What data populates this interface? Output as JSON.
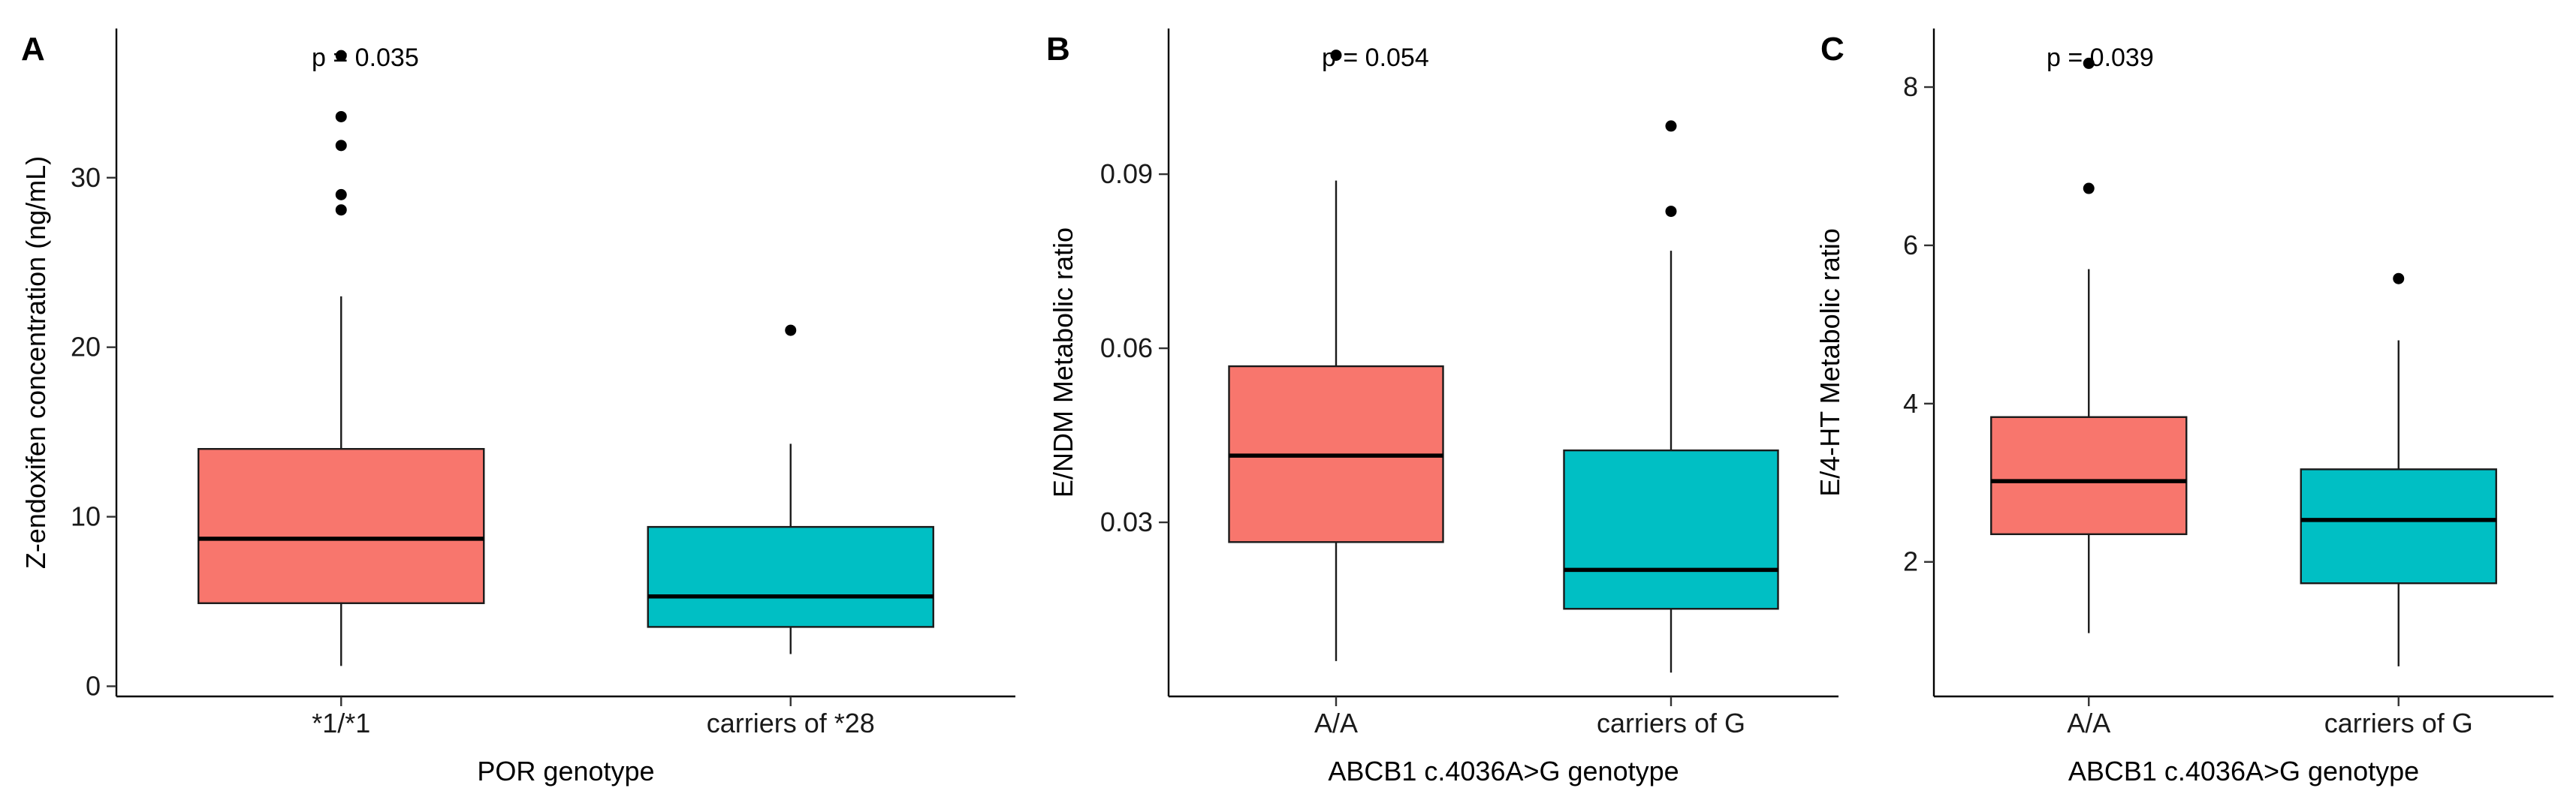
{
  "chart_data": [
    {
      "type": "boxplot",
      "panel_label": "A",
      "annotation": "p = 0.035",
      "xlabel": "POR genotype",
      "ylabel": "Z-endoxifen concentration (ng/mL)",
      "ylim": [
        -0.6,
        38.8
      ],
      "yticks": [
        0,
        10,
        20,
        30
      ],
      "ytick_labels": [
        "0",
        "10",
        "20",
        "30"
      ],
      "categories": [
        "*1/*1",
        "carriers of *28"
      ],
      "boxes": [
        {
          "category": "*1/*1",
          "color": "#F8766D",
          "whisker_low": 1.2,
          "q1": 4.9,
          "median": 8.7,
          "q3": 14.0,
          "whisker_high": 23.0,
          "outliers": [
            28.1,
            29.0,
            31.9,
            33.6,
            37.2
          ]
        },
        {
          "category": "carriers of *28",
          "color": "#00BFC4",
          "whisker_low": 1.9,
          "q1": 3.5,
          "median": 5.3,
          "q3": 9.4,
          "whisker_high": 14.3,
          "outliers": [
            21.0
          ]
        }
      ]
    },
    {
      "type": "boxplot",
      "panel_label": "B",
      "annotation": "p = 0.054",
      "xlabel": "ABCB1 c.4036A>G genotype",
      "ylabel": "E/NDM Metabolic ratio",
      "ylim": [
        0.0,
        0.1151
      ],
      "yticks": [
        0.03,
        0.06,
        0.09
      ],
      "ytick_labels": [
        "0.03",
        "0.06",
        "0.09"
      ],
      "categories": [
        "A/A",
        "carriers of G"
      ],
      "boxes": [
        {
          "category": "A/A",
          "color": "#F8766D",
          "whisker_low": 0.0061,
          "q1": 0.0266,
          "median": 0.0415,
          "q3": 0.0569,
          "whisker_high": 0.0889,
          "outliers": [
            0.1105
          ]
        },
        {
          "category": "carriers of G",
          "color": "#00BFC4",
          "whisker_low": 0.0041,
          "q1": 0.0151,
          "median": 0.0218,
          "q3": 0.0424,
          "whisker_high": 0.0768,
          "outliers": [
            0.0836,
            0.0983
          ]
        }
      ]
    },
    {
      "type": "boxplot",
      "panel_label": "C",
      "annotation": "p = 0.039",
      "xlabel": "ABCB1 c.4036A>G genotype",
      "ylabel": "E/4-HT Metabolic ratio",
      "ylim": [
        0.3,
        8.74
      ],
      "yticks": [
        2,
        4,
        6,
        8
      ],
      "ytick_labels": [
        "2",
        "4",
        "6",
        "8"
      ],
      "categories": [
        "A/A",
        "carriers of G"
      ],
      "boxes": [
        {
          "category": "A/A",
          "color": "#F8766D",
          "whisker_low": 1.1,
          "q1": 2.35,
          "median": 3.02,
          "q3": 3.83,
          "whisker_high": 5.7,
          "outliers": [
            6.72,
            8.3
          ]
        },
        {
          "category": "carriers of G",
          "color": "#00BFC4",
          "whisker_low": 0.68,
          "q1": 1.73,
          "median": 2.53,
          "q3": 3.17,
          "whisker_high": 4.8,
          "outliers": [
            5.58
          ]
        }
      ]
    }
  ]
}
